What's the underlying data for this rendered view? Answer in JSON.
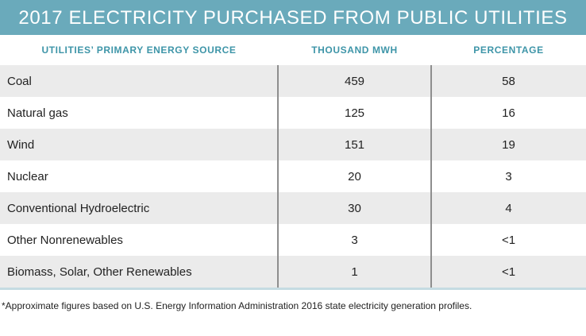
{
  "title": "2017 ELECTRICITY PURCHASED FROM PUBLIC UTILITIES",
  "columns": [
    "UTILITIES’ PRIMARY ENERGY SOURCE",
    "THOUSAND MWH",
    "PERCENTAGE"
  ],
  "rows": [
    {
      "source": "Coal",
      "mwh": "459",
      "pct": "58"
    },
    {
      "source": "Natural gas",
      "mwh": "125",
      "pct": "16"
    },
    {
      "source": "Wind",
      "mwh": "151",
      "pct": "19"
    },
    {
      "source": "Nuclear",
      "mwh": "20",
      "pct": "3"
    },
    {
      "source": "Conventional Hydroelectric",
      "mwh": "30",
      "pct": "4"
    },
    {
      "source": "Other Nonrenewables",
      "mwh": "3",
      "pct": "<1"
    },
    {
      "source": "Biomass, Solar, Other Renewables",
      "mwh": "1",
      "pct": "<1"
    }
  ],
  "footnote": "*Approximate figures based on U.S. Energy Information Administration 2016 state electricity generation profiles.",
  "colors": {
    "title_bg": "#6aaabb",
    "header_text": "#3e95a8",
    "row_shade": "#ebebeb"
  }
}
